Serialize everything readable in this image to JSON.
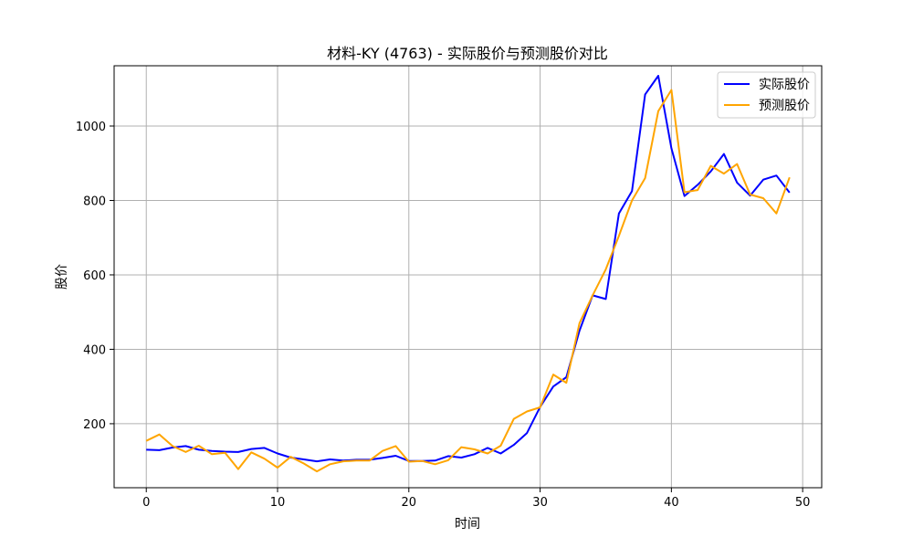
{
  "chart_data": {
    "type": "line",
    "title": "材料-KY (4763) - 实际股价与预测股价对比",
    "xlabel": "时间",
    "ylabel": "股价",
    "xlim": [
      -2.45,
      51.45
    ],
    "ylim": [
      28,
      1162
    ],
    "xticks": [
      0,
      10,
      20,
      30,
      40,
      50
    ],
    "yticks": [
      200,
      400,
      600,
      800,
      1000
    ],
    "grid": true,
    "legend_position": "top-right",
    "x": [
      0,
      1,
      2,
      3,
      4,
      5,
      6,
      7,
      8,
      9,
      10,
      11,
      12,
      13,
      14,
      15,
      16,
      17,
      18,
      19,
      20,
      21,
      22,
      23,
      24,
      25,
      26,
      27,
      28,
      29,
      30,
      31,
      32,
      33,
      34,
      35,
      36,
      37,
      38,
      39,
      40,
      41,
      42,
      43,
      44,
      45,
      46,
      47,
      48,
      49
    ],
    "series": [
      {
        "name": "实际股价",
        "color": "#0000ff",
        "values": [
          130,
          129,
          136,
          140,
          130,
          127,
          125,
          124,
          132,
          135,
          120,
          109,
          104,
          99,
          104,
          101,
          103,
          103,
          108,
          114,
          100,
          100,
          101,
          113,
          109,
          118,
          135,
          120,
          143,
          175,
          245,
          300,
          325,
          450,
          545,
          535,
          765,
          825,
          1085,
          1135,
          940,
          812,
          842,
          878,
          925,
          848,
          813,
          856,
          867,
          821
        ]
      },
      {
        "name": "预测股价",
        "color": "#ffa500",
        "values": [
          154,
          171,
          140,
          124,
          141,
          118,
          122,
          78,
          123,
          106,
          82,
          111,
          93,
          72,
          91,
          99,
          101,
          101,
          127,
          140,
          98,
          100,
          91,
          102,
          137,
          131,
          120,
          141,
          213,
          233,
          244,
          332,
          310,
          470,
          545,
          615,
          705,
          800,
          860,
          1040,
          1097,
          822,
          828,
          893,
          872,
          898,
          816,
          806,
          765,
          862
        ]
      }
    ]
  }
}
